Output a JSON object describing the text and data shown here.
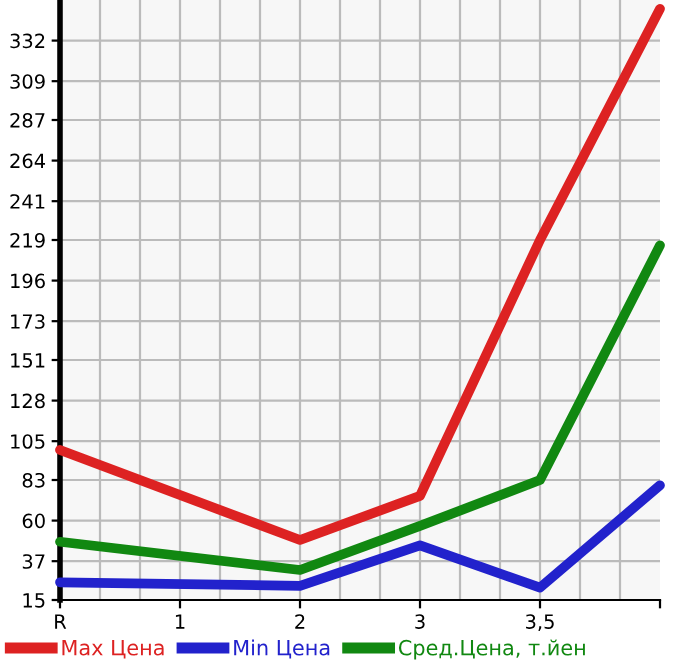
{
  "chart_data": {
    "type": "line",
    "categories": [
      "R",
      "1",
      "2",
      "3",
      "3,5",
      null
    ],
    "series": [
      {
        "name": "Max Цена",
        "color": "#dd2222",
        "values": [
          100,
          null,
          49,
          74,
          219,
          350
        ]
      },
      {
        "name": "Min Цена",
        "color": "#2222cc",
        "values": [
          25,
          null,
          23,
          46,
          22,
          80
        ]
      },
      {
        "name": "Сред.Цена, т.йен",
        "color": "#118811",
        "values": [
          48,
          null,
          32,
          57,
          83,
          216
        ]
      }
    ],
    "ylim": [
      15,
      355
    ],
    "yticks": [
      15,
      37,
      60,
      83,
      105,
      128,
      151,
      173,
      196,
      219,
      241,
      264,
      287,
      309,
      332
    ],
    "grid": true,
    "legend": "bottom",
    "marker": "none",
    "line_style": "solid"
  }
}
